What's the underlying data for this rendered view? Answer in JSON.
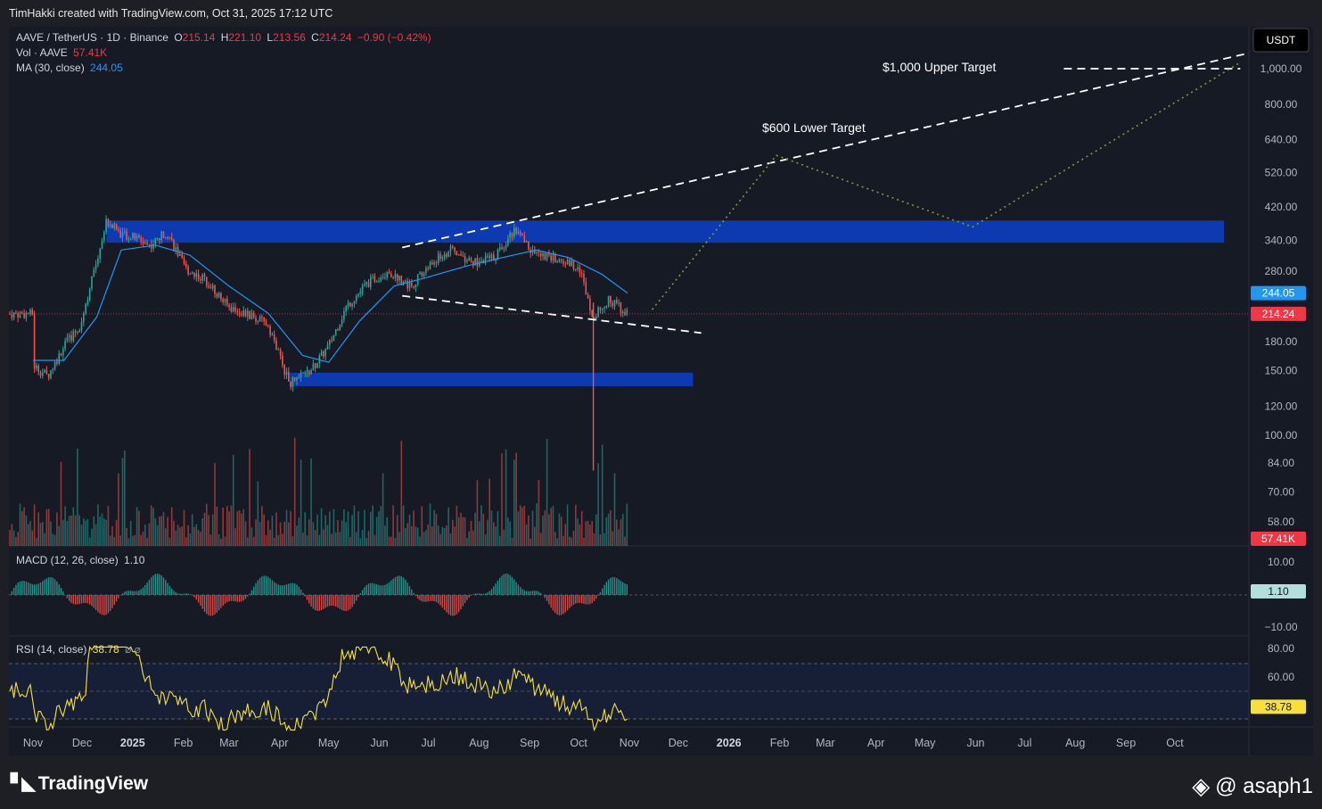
{
  "header": {
    "caption": "TimHakki created with TradingView.com, Oct 31, 2025 17:12 UTC"
  },
  "legend": {
    "symbol": "AAVE / TetherUS · 1D · Binance",
    "o_label": "O",
    "o_value": "215.14",
    "h_label": "H",
    "h_value": "221.10",
    "l_label": "L",
    "l_value": "213.56",
    "c_label": "C",
    "c_value": "214.24",
    "change": "−0.90 (−0.42%)",
    "vol_label": "Vol · AAVE",
    "vol_value": "57.41K",
    "ma_label": "MA (30, close)",
    "ma_value": "244.05",
    "macd_label": "MACD (12, 26, close)",
    "macd_value": "1.10",
    "rsi_label": "RSI (14, close)",
    "rsi_value": "38.78",
    "rsi_symbols": "⌀ ⌀"
  },
  "currency": "USDT",
  "annotations": {
    "upper": "$1,000 Upper Target",
    "lower": "$600 Lower Target"
  },
  "colors": {
    "up": "#26a69a",
    "down": "#ef5350",
    "ma": "#2196f3",
    "zone": "#0d3bb8",
    "rsi": "#f5e13a",
    "path": "#7f9a3a",
    "price_tag": "#f23645",
    "ma_tag": "#2196f3",
    "macd_tag": "#b2dfdb",
    "rsi_tag": "#f5e13a"
  },
  "footer": {
    "brand": "TradingView",
    "credit": "@ asaph1"
  },
  "chart_data": {
    "type": "candlestick",
    "price_scale": "log",
    "y_ticks": [
      "1,000.00",
      "800.00",
      "640.00",
      "520.00",
      "420.00",
      "340.00",
      "280.00",
      "180.00",
      "150.00",
      "120.00",
      "100.00",
      "84.00",
      "70.00",
      "58.00"
    ],
    "x_ticks": [
      "Nov",
      "Dec",
      "2025",
      "Feb",
      "Mar",
      "Apr",
      "May",
      "Jun",
      "Jul",
      "Aug",
      "Sep",
      "Oct",
      "Nov",
      "Dec",
      "2026",
      "Feb",
      "Mar",
      "Apr",
      "May",
      "Jun",
      "Jul",
      "Aug",
      "Sep",
      "Oct"
    ],
    "x_bold": [
      "2025",
      "2026"
    ],
    "price_path": [
      [
        "2024-11-01",
        155
      ],
      [
        "2024-11-10",
        145
      ],
      [
        "2024-11-20",
        175
      ],
      [
        "2024-11-30",
        200
      ],
      [
        "2024-12-10",
        300
      ],
      [
        "2024-12-16",
        385
      ],
      [
        "2024-12-25",
        355
      ],
      [
        "2025-01-03",
        345
      ],
      [
        "2025-01-12",
        330
      ],
      [
        "2025-01-22",
        360
      ],
      [
        "2025-02-02",
        285
      ],
      [
        "2025-02-15",
        265
      ],
      [
        "2025-02-28",
        225
      ],
      [
        "2025-03-10",
        215
      ],
      [
        "2025-03-25",
        200
      ],
      [
        "2025-04-07",
        138
      ],
      [
        "2025-04-20",
        150
      ],
      [
        "2025-05-01",
        175
      ],
      [
        "2025-05-12",
        225
      ],
      [
        "2025-05-25",
        260
      ],
      [
        "2025-06-06",
        280
      ],
      [
        "2025-06-20",
        255
      ],
      [
        "2025-07-05",
        300
      ],
      [
        "2025-07-15",
        320
      ],
      [
        "2025-07-28",
        295
      ],
      [
        "2025-08-10",
        305
      ],
      [
        "2025-08-23",
        365
      ],
      [
        "2025-09-03",
        315
      ],
      [
        "2025-09-18",
        300
      ],
      [
        "2025-10-01",
        290
      ],
      [
        "2025-10-10",
        210
      ],
      [
        "2025-10-20",
        235
      ],
      [
        "2025-10-31",
        214.24
      ]
    ],
    "ma30_path": [
      [
        "2024-11-01",
        160
      ],
      [
        "2024-11-20",
        160
      ],
      [
        "2024-12-10",
        210
      ],
      [
        "2024-12-25",
        320
      ],
      [
        "2025-01-15",
        330
      ],
      [
        "2025-02-05",
        310
      ],
      [
        "2025-03-01",
        255
      ],
      [
        "2025-03-25",
        215
      ],
      [
        "2025-04-15",
        165
      ],
      [
        "2025-05-01",
        158
      ],
      [
        "2025-05-20",
        205
      ],
      [
        "2025-06-10",
        255
      ],
      [
        "2025-07-01",
        270
      ],
      [
        "2025-07-25",
        290
      ],
      [
        "2025-08-15",
        305
      ],
      [
        "2025-09-05",
        320
      ],
      [
        "2025-09-25",
        305
      ],
      [
        "2025-10-15",
        275
      ],
      [
        "2025-10-31",
        244.05
      ]
    ],
    "wick_low": {
      "date": "2025-10-10",
      "price": 80
    },
    "zones": [
      {
        "from": "2024-12-16",
        "to": "2026-10-31",
        "low": 335,
        "high": 385
      },
      {
        "from": "2025-04-07",
        "to": "2025-12-10",
        "low": 136,
        "high": 148
      }
    ],
    "trendlines": [
      {
        "style": "dashed",
        "points": [
          [
            "2025-06-15",
            325
          ],
          [
            "2026-11-25",
            1100
          ]
        ]
      },
      {
        "style": "dashed",
        "points": [
          [
            "2025-06-15",
            240
          ],
          [
            "2025-12-15",
            190
          ]
        ]
      },
      {
        "style": "dashed",
        "points": [
          [
            "2026-07-25",
            1000
          ],
          [
            "2026-11-10",
            1000
          ]
        ]
      },
      {
        "style": "dotted",
        "points": [
          [
            "2025-11-15",
            220
          ],
          [
            "2026-01-30",
            580
          ],
          [
            "2026-05-30",
            370
          ],
          [
            "2026-11-10",
            1040
          ]
        ]
      }
    ],
    "last_price": 214.24,
    "ma_value": 244.05,
    "volume_last": "57.41K",
    "macd_ticks": [
      "10.00",
      "−10.00"
    ],
    "macd_last": 1.1,
    "rsi_ticks": [
      "80.00",
      "60.00"
    ],
    "rsi_last": 38.78,
    "rsi_band": [
      30,
      70
    ]
  }
}
